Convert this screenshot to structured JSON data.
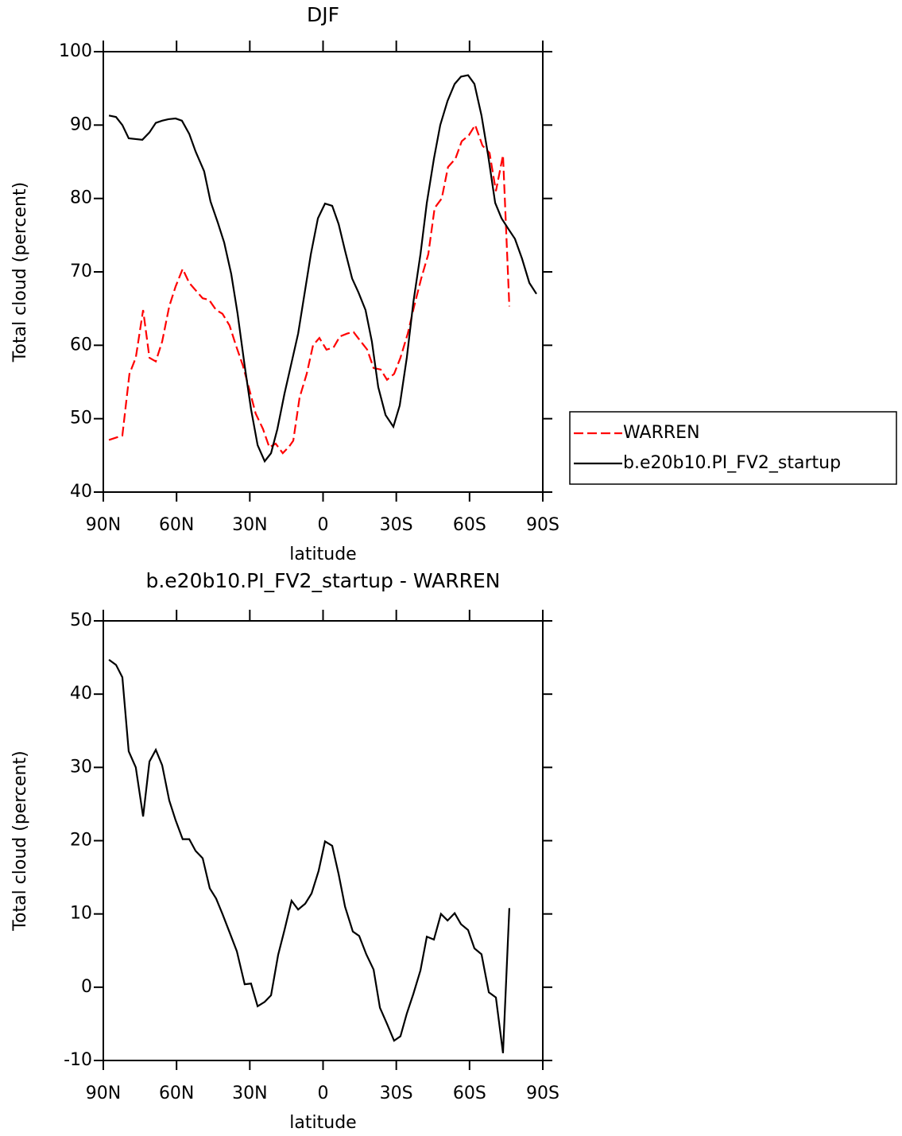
{
  "chart_data": [
    {
      "type": "line",
      "title": "DJF",
      "x_label": "latitude",
      "y_label": "Total cloud (percent)",
      "xlim": [
        90,
        -90
      ],
      "xticks": [
        {
          "value": 90,
          "label": "90N"
        },
        {
          "value": 60,
          "label": "60N"
        },
        {
          "value": 30,
          "label": "30N"
        },
        0,
        {
          "value": -30,
          "label": "30S"
        },
        {
          "value": -60,
          "label": "60S"
        },
        {
          "value": -90,
          "label": "90S"
        }
      ],
      "ylim": [
        40,
        100
      ],
      "yticks": [
        40,
        50,
        60,
        70,
        80,
        90,
        100
      ],
      "legend": "right",
      "series": [
        {
          "name": "WARREN",
          "color": "#ff0000",
          "dash": "dashed",
          "x": [
            87.7,
            82.2,
            79.3,
            76.7,
            73.7,
            71.1,
            68.5,
            65.9,
            63.0,
            60.4,
            57.5,
            54.8,
            52.2,
            49.3,
            46.7,
            43.8,
            41.2,
            38.3,
            35.7,
            32.8,
            30.2,
            27.6,
            24.6,
            22.0,
            19.4,
            16.5,
            13.9,
            12.2,
            9.6,
            6.7,
            4.1,
            1.5,
            -1.4,
            -4.3,
            -6.9,
            -9.9,
            -12.5,
            -15.5,
            -18.1,
            -20.7,
            -23.6,
            -26.2,
            -29.1,
            -31.7,
            -34.7,
            -37.3,
            -40.2,
            -43.1,
            -45.7,
            -48.6,
            -51.2,
            -54.2,
            -56.8,
            -59.7,
            -62.3,
            -65.3,
            -68.2,
            -70.8,
            -73.7,
            -76.3
          ],
          "values": [
            47.1,
            47.7,
            56.1,
            58.3,
            64.8,
            58.3,
            57.8,
            60.5,
            65.3,
            68.0,
            70.4,
            68.5,
            67.5,
            66.4,
            66.2,
            64.8,
            64.3,
            62.7,
            60.0,
            57.2,
            54.0,
            50.7,
            48.6,
            46.1,
            46.6,
            45.3,
            46.2,
            47.0,
            52.9,
            56.1,
            60.0,
            61.0,
            59.4,
            59.7,
            61.2,
            61.6,
            61.8,
            60.5,
            59.4,
            56.9,
            56.7,
            55.3,
            56.1,
            58.3,
            61.6,
            65.3,
            69.1,
            72.4,
            78.7,
            80.0,
            84.3,
            85.4,
            87.8,
            88.6,
            90.0,
            87.2,
            86.2,
            81.0,
            85.9,
            65.3
          ]
        },
        {
          "name": "b.e20b10.PI_FV2_startup",
          "color": "#000000",
          "dash": "solid",
          "x": [
            87.7,
            84.8,
            82.2,
            79.6,
            74.0,
            71.1,
            68.5,
            65.9,
            63.3,
            60.4,
            57.8,
            54.8,
            52.2,
            48.7,
            46.1,
            43.1,
            40.5,
            37.6,
            35.0,
            32.1,
            29.5,
            26.8,
            23.9,
            21.3,
            18.7,
            15.8,
            13.2,
            10.2,
            7.6,
            5.0,
            2.1,
            -0.8,
            -3.75,
            -6.4,
            -9.0,
            -11.9,
            -14.5,
            -17.4,
            -20.0,
            -22.6,
            -25.6,
            -28.8,
            -31.4,
            -34.3,
            -37.0,
            -39.9,
            -42.5,
            -45.4,
            -48.0,
            -51.0,
            -53.9,
            -56.5,
            -59.4,
            -62.0,
            -64.9,
            -67.6,
            -70.5,
            -73.1,
            -76.0,
            -78.6,
            -81.5,
            -84.5,
            -87.4
          ],
          "values": [
            91.3,
            91.1,
            90.0,
            88.2,
            88.0,
            89.0,
            90.3,
            90.6,
            90.8,
            90.9,
            90.6,
            88.8,
            86.4,
            83.7,
            79.6,
            76.7,
            74.0,
            69.7,
            64.3,
            57.2,
            51.3,
            46.4,
            44.2,
            45.3,
            48.6,
            53.4,
            57.2,
            61.6,
            67.0,
            72.4,
            77.3,
            79.3,
            79.0,
            76.5,
            72.9,
            69.1,
            67.2,
            64.8,
            60.5,
            54.3,
            50.5,
            48.9,
            51.8,
            58.3,
            65.9,
            72.4,
            79.4,
            85.4,
            90.0,
            93.3,
            95.6,
            96.6,
            96.8,
            95.6,
            91.3,
            85.9,
            79.4,
            77.3,
            75.8,
            74.5,
            71.8,
            68.5,
            67.0
          ]
        }
      ]
    },
    {
      "type": "line",
      "title": "b.e20b10.PI_FV2_startup - WARREN",
      "x_label": "latitude",
      "y_label": "Total cloud (percent)",
      "xlim": [
        90,
        -90
      ],
      "xticks": [
        {
          "value": 90,
          "label": "90N"
        },
        {
          "value": 60,
          "label": "60N"
        },
        {
          "value": 30,
          "label": "30N"
        },
        0,
        {
          "value": -30,
          "label": "30S"
        },
        {
          "value": -60,
          "label": "60S"
        },
        {
          "value": -90,
          "label": "90S"
        }
      ],
      "ylim": [
        -10,
        50
      ],
      "yticks": [
        -10,
        0,
        10,
        20,
        30,
        40,
        50
      ],
      "series": [
        {
          "color": "#000000",
          "dash": "solid",
          "x": [
            87.7,
            84.8,
            82.2,
            79.6,
            76.7,
            73.7,
            71.1,
            68.5,
            65.9,
            63.0,
            60.4,
            57.5,
            54.8,
            52.2,
            49.3,
            46.4,
            43.8,
            41.2,
            38.3,
            35.3,
            32.1,
            29.5,
            26.8,
            23.9,
            21.3,
            18.4,
            15.8,
            12.9,
            10.2,
            7.3,
            4.7,
            1.8,
            -0.8,
            -3.75,
            -6.4,
            -9.0,
            -12.2,
            -14.8,
            -17.7,
            -20.7,
            -23.3,
            -26.2,
            -29.1,
            -31.7,
            -34.3,
            -37.0,
            -39.9,
            -42.5,
            -45.4,
            -48.3,
            -51.0,
            -53.9,
            -56.5,
            -59.4,
            -62.0,
            -64.9,
            -67.9,
            -70.8,
            -73.7,
            -76.3
          ],
          "values": [
            44.7,
            44.0,
            42.3,
            32.2,
            30.0,
            23.3,
            30.8,
            32.4,
            30.3,
            25.5,
            22.8,
            20.2,
            20.2,
            18.6,
            17.6,
            13.5,
            12.1,
            10.0,
            7.5,
            4.9,
            0.4,
            0.5,
            -2.6,
            -2.0,
            -1.1,
            4.4,
            7.8,
            11.8,
            10.6,
            11.4,
            12.8,
            15.9,
            19.9,
            19.3,
            15.4,
            11.0,
            7.6,
            7.0,
            4.5,
            2.4,
            -2.8,
            -5.0,
            -7.3,
            -6.7,
            -3.6,
            -0.9,
            2.3,
            6.9,
            6.5,
            10.0,
            9.1,
            10.1,
            8.6,
            7.8,
            5.3,
            4.5,
            -0.7,
            -1.4,
            -9.0,
            10.8
          ]
        }
      ]
    }
  ]
}
